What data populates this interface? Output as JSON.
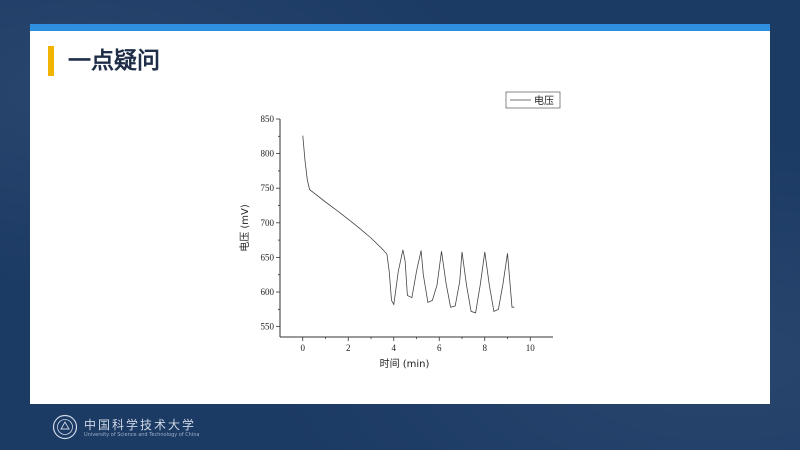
{
  "slide": {
    "title": "一点疑问"
  },
  "footer": {
    "university_name": "中国科学技术大学",
    "university_name_en": "University of Science and Technology of China"
  },
  "colors": {
    "background": "#1b3a64",
    "top_bar": "#2f8fe0",
    "title_accent": "#f0b400",
    "title_text": "#1f2d47"
  },
  "chart_data": {
    "type": "line",
    "xlabel": "时间 (min)",
    "ylabel": "电压 (mV)",
    "xlim": [
      -1,
      11
    ],
    "ylim": [
      535,
      850
    ],
    "xticks": [
      0,
      2,
      4,
      6,
      8,
      10
    ],
    "yticks": [
      550,
      600,
      650,
      700,
      750,
      800,
      850
    ],
    "legend": "top-right",
    "grid": false,
    "series": [
      {
        "name": "电压",
        "x": [
          0,
          0.1,
          0.2,
          0.3,
          0.5,
          1.0,
          1.5,
          2.0,
          2.5,
          3.0,
          3.5,
          3.7,
          3.8,
          3.9,
          4.0,
          4.2,
          4.4,
          4.5,
          4.6,
          4.8,
          5.0,
          5.2,
          5.3,
          5.5,
          5.7,
          5.9,
          6.1,
          6.3,
          6.5,
          6.7,
          6.9,
          7.0,
          7.2,
          7.4,
          7.6,
          7.8,
          8.0,
          8.2,
          8.4,
          8.6,
          8.8,
          9.0,
          9.2,
          9.3
        ],
        "y": [
          826,
          790,
          762,
          748,
          743,
          730,
          718,
          705,
          692,
          678,
          662,
          655,
          630,
          588,
          582,
          630,
          661,
          645,
          595,
          592,
          630,
          660,
          625,
          585,
          588,
          610,
          659,
          612,
          578,
          580,
          615,
          658,
          610,
          572,
          570,
          610,
          658,
          610,
          572,
          575,
          612,
          656,
          578,
          578
        ]
      }
    ]
  }
}
